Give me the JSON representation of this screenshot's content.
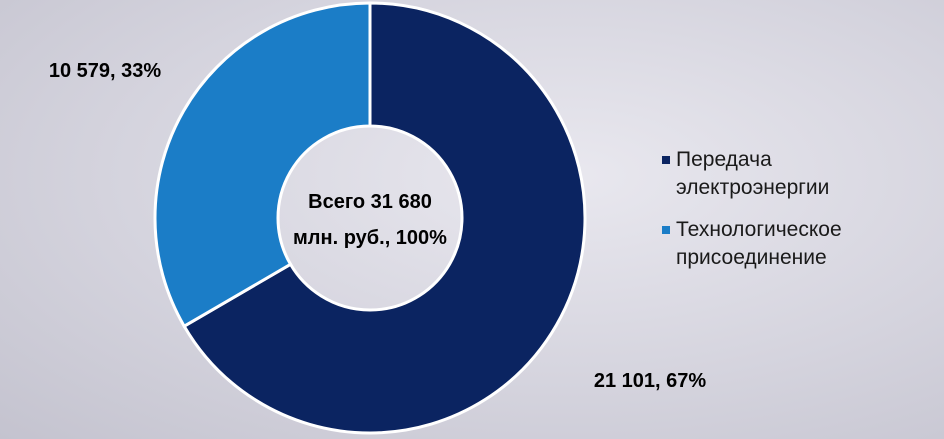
{
  "chart_data": {
    "type": "pie",
    "categories": [
      "Передача электроэнергии",
      "Технологическое присоединение"
    ],
    "values": [
      21101,
      10579
    ],
    "value_labels": [
      "21 101, 67%",
      "10 579, 33%"
    ],
    "colors": [
      "#0b2461",
      "#1b7dc7"
    ],
    "center_text": [
      "Всего 31 680",
      "млн. руб., 100%"
    ],
    "legend": "right"
  }
}
